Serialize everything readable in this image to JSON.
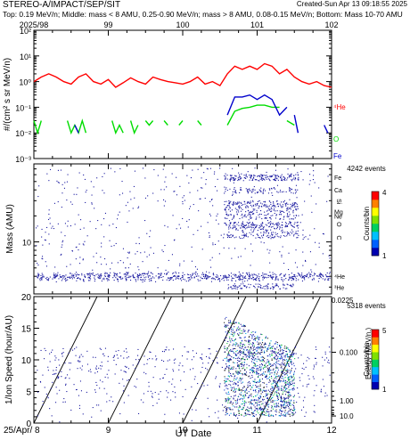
{
  "header": {
    "title": "STEREO-A/IMPACT/SEP/SIT",
    "created": "Created-Sun Apr 13 09:18:55 2025",
    "description": "Top: 0.19 MeV/n; Middle: mass < 8 AMU, 0.25-0.90 MeV/n; mass > 8 AMU, 0.08-0.15 MeV/n; Bottom: Mass 10-70 AMU"
  },
  "top_axis": {
    "tick_labels": [
      "2025/98",
      "99",
      "100",
      "101",
      "102"
    ],
    "ticks_day": [
      8,
      9,
      10,
      11,
      12
    ]
  },
  "x_axis": {
    "tick_labels": [
      "25/Apr/ 8",
      "9",
      "10",
      "11",
      "12"
    ],
    "ticks_day": [
      8,
      9,
      10,
      11,
      12
    ],
    "label": "UT Date",
    "range": [
      8,
      12
    ]
  },
  "colors": {
    "he": "#ff0000",
    "o": "#00dd00",
    "fe": "#0000cc",
    "dots": "#1a1aa0",
    "axis": "#000000"
  },
  "chart_data": [
    {
      "type": "line",
      "ylabel": "#/(cm² s sr MeV/n)",
      "yscale": "log",
      "ylim": [
        0.001,
        100
      ],
      "ytick_labels": [
        "10⁻³",
        "10⁻²",
        "10⁻¹",
        "10⁰",
        "10¹",
        "10²"
      ],
      "series": [
        {
          "name": "⁴He",
          "color": "#ff0000",
          "x": [
            8.0,
            8.1,
            8.2,
            8.3,
            8.4,
            8.5,
            8.6,
            8.7,
            8.8,
            8.9,
            9.0,
            9.1,
            9.2,
            9.3,
            9.4,
            9.5,
            9.6,
            9.7,
            9.8,
            9.9,
            10.0,
            10.1,
            10.2,
            10.3,
            10.4,
            10.5,
            10.6,
            10.7,
            10.8,
            10.9,
            11.0,
            11.1,
            11.2,
            11.3,
            11.4,
            11.5,
            11.6,
            11.7,
            11.8,
            11.9,
            12.0
          ],
          "y": [
            1.0,
            1.5,
            2.0,
            1.5,
            1.0,
            0.8,
            1.5,
            2.0,
            1.0,
            0.8,
            1.2,
            0.6,
            0.9,
            1.4,
            1.0,
            0.8,
            1.5,
            1.2,
            1.0,
            0.9,
            0.8,
            1.0,
            1.5,
            0.8,
            1.0,
            0.7,
            2.0,
            4.0,
            3.0,
            4.0,
            3.0,
            5.0,
            4.0,
            2.0,
            3.0,
            1.5,
            1.0,
            0.8,
            1.0,
            0.7,
            0.6
          ]
        },
        {
          "name": "O",
          "color": "#00dd00",
          "x": [
            8.0,
            8.05,
            8.1,
            null,
            8.45,
            8.5,
            8.55,
            8.6,
            8.65,
            8.7,
            null,
            9.05,
            9.1,
            9.15,
            9.2,
            null,
            9.3,
            9.35,
            9.4,
            null,
            9.5,
            9.55,
            9.6,
            null,
            9.75,
            9.8,
            null,
            9.95,
            10.0,
            null,
            10.2,
            10.25,
            null,
            10.6,
            10.7,
            10.8,
            10.9,
            11.0,
            11.1,
            11.2,
            11.3,
            null,
            11.4,
            11.5
          ],
          "y": [
            0.03,
            0.01,
            0.03,
            null,
            0.03,
            0.01,
            0.02,
            0.01,
            0.03,
            0.01,
            null,
            0.03,
            0.01,
            0.02,
            0.01,
            null,
            0.03,
            0.01,
            0.02,
            null,
            0.03,
            0.02,
            0.03,
            null,
            0.03,
            0.02,
            null,
            0.02,
            0.03,
            null,
            0.03,
            0.02,
            null,
            0.02,
            0.07,
            0.09,
            0.1,
            0.12,
            0.12,
            0.1,
            0.1,
            null,
            0.03,
            0.02
          ]
        },
        {
          "name": "Fe",
          "color": "#0000cc",
          "x": [
            8.55,
            8.6,
            null,
            10.6,
            10.7,
            10.8,
            10.9,
            11.0,
            11.1,
            11.2,
            11.3,
            11.4,
            null,
            11.5,
            11.55,
            null,
            11.9,
            11.95
          ],
          "y": [
            0.02,
            0.01,
            null,
            0.05,
            0.25,
            0.25,
            0.3,
            0.2,
            0.3,
            0.2,
            0.05,
            0.1,
            null,
            0.05,
            0.01,
            null,
            0.02,
            0.01
          ]
        }
      ],
      "species_labels": [
        {
          "text": "⁴He",
          "color": "#ff0000"
        },
        {
          "text": "O",
          "color": "#00dd00"
        },
        {
          "text": "Fe",
          "color": "#0000cc"
        }
      ]
    },
    {
      "type": "scatter",
      "ylabel": "Mass (AMU)",
      "yscale": "log",
      "ytick_labels": [
        "10"
      ],
      "species_labels": [
        "Fe",
        "Ca",
        "Si",
        "Mg",
        "Ne",
        "O",
        "C",
        "⁴He",
        "³He"
      ],
      "event_count": "4242 events",
      "colorbar": {
        "label": "Counts/bin",
        "tick_labels": [
          "4",
          "1"
        ],
        "range": [
          1,
          4
        ]
      }
    },
    {
      "type": "scatter",
      "ylabel": "1/Ion Speed (hour/AU)",
      "ylim": [
        0,
        20
      ],
      "ytick_labels": [
        "0",
        "5",
        "10",
        "15",
        "20"
      ],
      "right_axis": {
        "label": "Energy (MeV/n.)",
        "tick_labels": [
          "0.0225",
          "0.100",
          "1.00",
          "10.0"
        ]
      },
      "event_count": "5318 events",
      "colorbar": {
        "label": "Counts/bin",
        "tick_labels": [
          "5",
          "1"
        ],
        "range": [
          1,
          5
        ]
      }
    }
  ]
}
